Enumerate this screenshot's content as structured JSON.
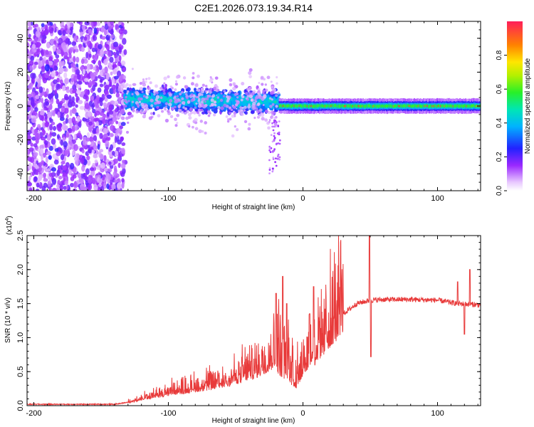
{
  "title": "C2E1.2026.073.19.34.R14",
  "chart_data": [
    {
      "type": "heatmap",
      "xlabel": "Height of straight line (km)",
      "ylabel": "Frequency (Hz)",
      "xlim": [
        -205,
        132
      ],
      "ylim": [
        -50,
        50
      ],
      "xticks": [
        -200,
        -100,
        0,
        100
      ],
      "yticks": [
        -40,
        -20,
        0,
        20,
        40
      ],
      "colorbar": {
        "label": "Normalized spectral amplitude",
        "range": [
          0,
          1
        ],
        "ticks": [
          "0.0",
          "0.2",
          "0.4",
          "0.6",
          "0.8"
        ],
        "tick_values": [
          0.0,
          0.2,
          0.4,
          0.6,
          0.8
        ]
      },
      "regions": [
        {
          "name": "diffuse-noise",
          "x": [
            -205,
            -132
          ],
          "freq_spread": 50,
          "amplitude": [
            0.05,
            0.2
          ]
        },
        {
          "name": "scattered-band",
          "x": [
            -132,
            -18
          ],
          "freq_center": 3,
          "freq_spread": 10,
          "amplitude": [
            0.1,
            0.45
          ]
        },
        {
          "name": "narrow-line",
          "x": [
            -18,
            132
          ],
          "freq_center": 0,
          "freq_spread": 2,
          "amplitude": [
            0.4,
            1.0
          ]
        }
      ]
    },
    {
      "type": "line",
      "xlabel": "Height of straight line (km)",
      "ylabel": "SNR (10 * v/v)",
      "y_multiplier": "(x10^4)",
      "xlim": [
        -205,
        132
      ],
      "ylim": [
        0,
        2.5
      ],
      "xticks": [
        -200,
        -100,
        0,
        100
      ],
      "yticks": [
        0.0,
        0.5,
        1.0,
        1.5,
        2.0,
        2.5
      ],
      "yticklabels": [
        "0.0",
        "0.5",
        "1.0",
        "1.5",
        "2.0",
        "2.5"
      ],
      "series": [
        {
          "name": "SNR",
          "color": "#e83a3a",
          "envelope": [
            {
              "x": -205,
              "y": 0.02
            },
            {
              "x": -140,
              "y": 0.02
            },
            {
              "x": -130,
              "y": 0.05
            },
            {
              "x": -100,
              "y": 0.18
            },
            {
              "x": -70,
              "y": 0.28
            },
            {
              "x": -50,
              "y": 0.38
            },
            {
              "x": -35,
              "y": 0.5
            },
            {
              "x": -20,
              "y": 0.7
            },
            {
              "x": -12,
              "y": 0.55
            },
            {
              "x": -5,
              "y": 0.35
            },
            {
              "x": 0,
              "y": 0.6
            },
            {
              "x": 10,
              "y": 0.75
            },
            {
              "x": 20,
              "y": 1.05
            },
            {
              "x": 30,
              "y": 1.35
            },
            {
              "x": 40,
              "y": 1.5
            },
            {
              "x": 50,
              "y": 1.55
            },
            {
              "x": 60,
              "y": 1.56
            },
            {
              "x": 80,
              "y": 1.56
            },
            {
              "x": 100,
              "y": 1.55
            },
            {
              "x": 115,
              "y": 1.5
            },
            {
              "x": 132,
              "y": 1.48
            }
          ],
          "spikes": [
            {
              "x": -20,
              "y": 1.65
            },
            {
              "x": -15,
              "y": 1.9
            },
            {
              "x": -12,
              "y": 1.5
            },
            {
              "x": 5,
              "y": 1.35
            },
            {
              "x": 8,
              "y": 1.75
            },
            {
              "x": 49.5,
              "y": 2.5
            },
            {
              "x": 50.5,
              "y": 0.72
            },
            {
              "x": 115,
              "y": 1.82
            },
            {
              "x": 120,
              "y": 1.05
            },
            {
              "x": 124,
              "y": 2.0
            }
          ]
        }
      ]
    }
  ]
}
